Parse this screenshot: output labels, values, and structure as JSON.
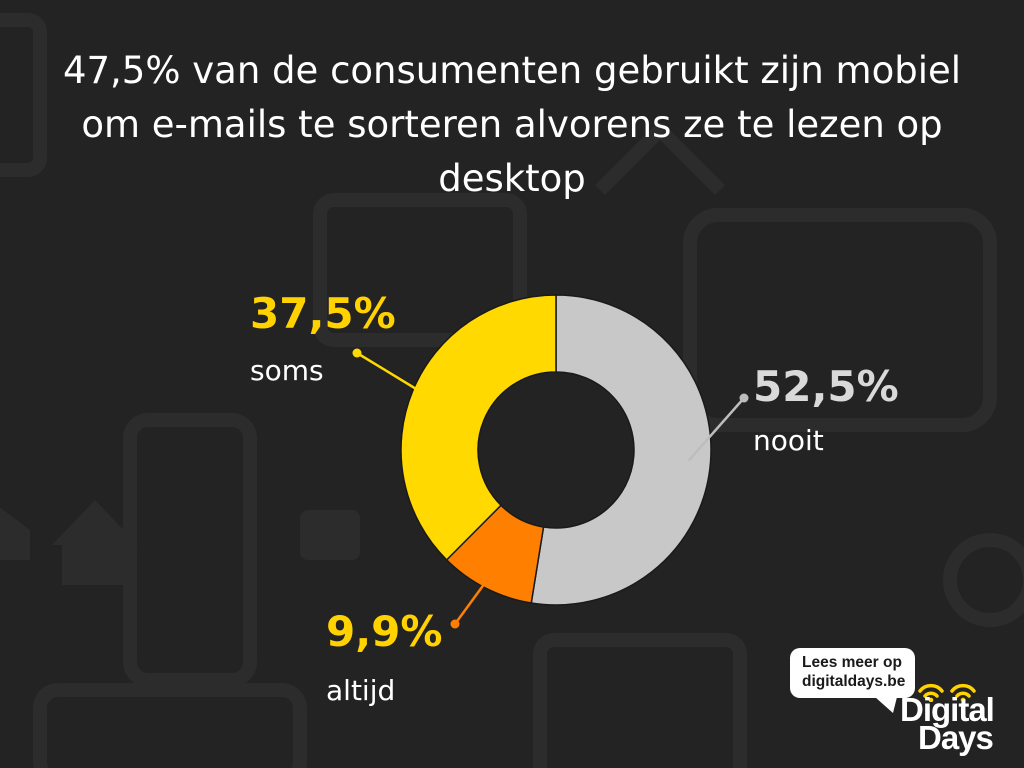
{
  "title": "47,5% van de consumenten gebruikt zijn mobiel om e-mails te sorteren alvorens ze te lezen op desktop",
  "chart_data": {
    "type": "pie",
    "donut": true,
    "title": "47,5% van de consumenten gebruikt zijn mobiel om e-mails te sorteren alvorens ze te lezen op desktop",
    "slices": [
      {
        "label": "nooit",
        "value": 52.5,
        "value_label": "52,5%",
        "color": "#c8c8c8",
        "label_color": "#d9d9d9"
      },
      {
        "label": "altijd",
        "value": 9.9,
        "value_label": "9,9%",
        "color": "#ff7f00",
        "label_color": "#ffd200"
      },
      {
        "label": "soms",
        "value": 37.5,
        "value_label": "37,5%",
        "color": "#ffd900",
        "label_color": "#ffd200"
      }
    ]
  },
  "badge": {
    "line1": "Lees meer op",
    "line2": "digitaldays.be"
  },
  "brand": {
    "line1": "Digital",
    "line2": "Days"
  },
  "colors": {
    "background": "#232323",
    "accent": "#ffd200",
    "text": "#ffffff"
  }
}
